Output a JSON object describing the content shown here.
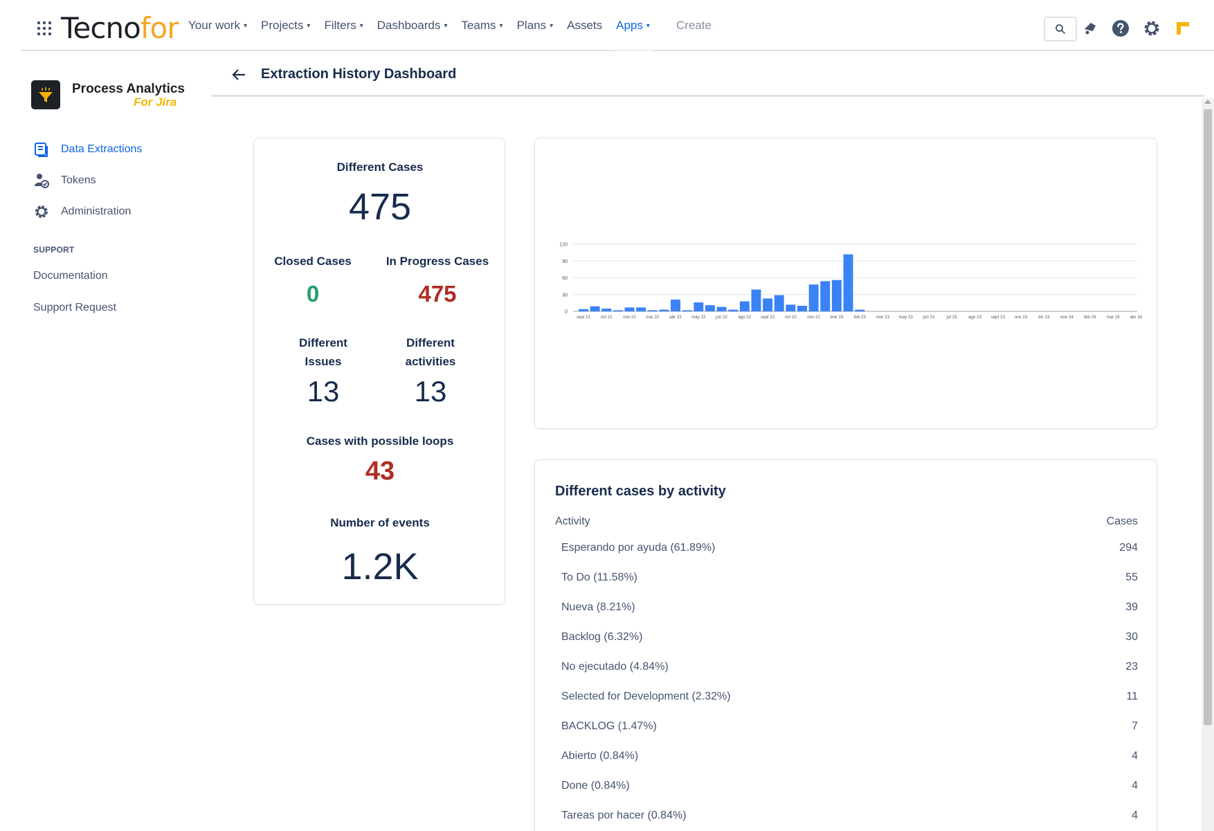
{
  "nav": {
    "logo_lead": "Tecno",
    "logo_tail": "for",
    "items": [
      {
        "label": "Your work",
        "chev": "▾"
      },
      {
        "label": "Projects",
        "chev": "▾"
      },
      {
        "label": "Filters",
        "chev": "▾"
      },
      {
        "label": "Dashboards",
        "chev": "▾"
      },
      {
        "label": "Teams",
        "chev": "▾"
      },
      {
        "label": "Plans",
        "chev": "▾"
      },
      {
        "label": "Assets",
        "chev": ""
      },
      {
        "label": "Apps",
        "chev": "▾"
      }
    ],
    "active_item": "Apps",
    "create_label": "Create",
    "icons": [
      "search-icon",
      "notifications-icon",
      "help-icon",
      "settings-icon",
      "profile-icon"
    ],
    "accent_color": "#0c66e4"
  },
  "sidebar": {
    "brand_title": "Process Analytics",
    "brand_subtitle": "For Jira",
    "items": [
      {
        "label": "Data Extractions",
        "icon": "document-list-icon",
        "active": true
      },
      {
        "label": "Tokens",
        "icon": "user-token-icon",
        "active": false
      },
      {
        "label": "Administration",
        "icon": "gear-icon",
        "active": false
      }
    ],
    "support_heading": "SUPPORT",
    "support_links": [
      "Documentation",
      "Support Request"
    ]
  },
  "page": {
    "title": "Extraction History Dashboard"
  },
  "stats": {
    "different_cases_label": "Different Cases",
    "different_cases_value": "475",
    "closed_cases_label": "Closed Cases",
    "closed_cases_value": "0",
    "in_progress_label": "In Progress Cases",
    "in_progress_value": "475",
    "different_issues_label_1": "Different",
    "different_issues_label_2": "Issues",
    "different_issues_value": "13",
    "different_activities_label_1": "Different",
    "different_activities_label_2": "activities",
    "different_activities_value": "13",
    "loops_label": "Cases with possible loops",
    "loops_value": "43",
    "events_label": "Number of events",
    "events_value": "1.2K",
    "colors": {
      "closed": "#22a06b",
      "in_progress": "#ae2e24",
      "loops": "#ae2e24"
    }
  },
  "chart_data": {
    "type": "bar",
    "title": "",
    "xlabel": "",
    "ylabel": "",
    "ylim": [
      0,
      120
    ],
    "yticks": [
      "0",
      "30",
      "60",
      "90",
      "120"
    ],
    "grid": true,
    "bar_color": "#3b82f6",
    "categories": [
      "sept 21",
      "",
      "oct 21",
      "",
      "nov 21",
      "",
      "mar 22",
      "",
      "abr 22",
      "",
      "may 22",
      "",
      "jun 22",
      "",
      "ago 22",
      "",
      "sept 22",
      "",
      "oct 22",
      "",
      "nov 22",
      "",
      "ene 23",
      "",
      "feb 23",
      "",
      "mar 23",
      "",
      "may 23",
      "",
      "jun 23",
      "",
      "jul 23",
      "",
      "ago 23",
      "",
      "sept 23",
      "",
      "nov 23",
      "",
      "dic 23",
      "",
      "ene 24",
      "",
      "feb 24",
      "",
      "mar 24",
      "",
      "abr 24"
    ],
    "values": [
      4,
      9,
      5,
      2,
      7,
      7,
      2,
      3,
      21,
      2,
      16,
      11,
      8,
      3,
      18,
      39,
      23,
      29,
      12,
      10,
      48,
      54,
      56,
      102,
      3,
      0,
      0,
      0,
      0,
      0,
      0,
      0,
      0,
      0,
      0,
      0,
      0,
      0,
      0,
      0,
      0,
      0,
      0,
      0,
      0,
      0,
      0,
      0,
      0
    ]
  },
  "activity_table": {
    "title": "Different cases by activity",
    "col_activity": "Activity",
    "col_cases": "Cases",
    "rows": [
      {
        "activity": "Esperando por ayuda (61.89%)",
        "cases": "294"
      },
      {
        "activity": "To Do (11.58%)",
        "cases": "55"
      },
      {
        "activity": "Nueva (8.21%)",
        "cases": "39"
      },
      {
        "activity": "Backlog (6.32%)",
        "cases": "30"
      },
      {
        "activity": "No ejecutado (4.84%)",
        "cases": "23"
      },
      {
        "activity": "Selected for Development (2.32%)",
        "cases": "11"
      },
      {
        "activity": "BACKLOG (1.47%)",
        "cases": "7"
      },
      {
        "activity": "Abierto (0.84%)",
        "cases": "4"
      },
      {
        "activity": "Done (0.84%)",
        "cases": "4"
      },
      {
        "activity": "Tareas por hacer (0.84%)",
        "cases": "4"
      }
    ]
  }
}
